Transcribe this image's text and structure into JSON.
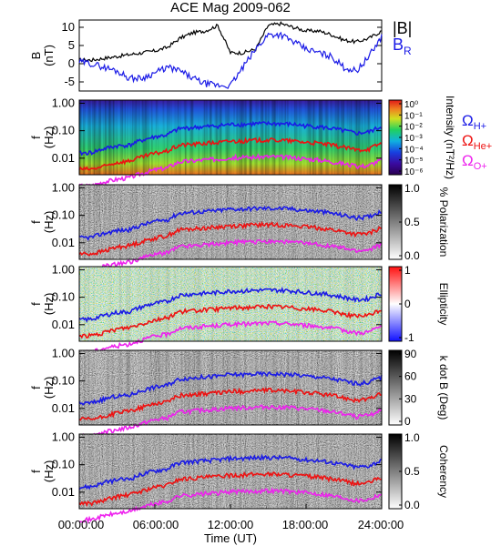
{
  "title": "ACE Mag 2009-062",
  "colors": {
    "b_total": "#000000",
    "b_r": "#1a1ae6",
    "omega_h": "#1a1ae6",
    "omega_he": "#ee1111",
    "omega_o": "#ee22ee"
  },
  "x_axis": {
    "label": "Time (UT)",
    "ticks": [
      "00:00:00",
      "06:00:00",
      "12:00:00",
      "18:00:00",
      "24:00:00"
    ],
    "range_hours": [
      0,
      24
    ]
  },
  "gyro_legend": [
    {
      "symbol": "Ω",
      "sub": "H+",
      "color": "#1a1ae6"
    },
    {
      "symbol": "Ω",
      "sub": "He+",
      "color": "#ee1111"
    },
    {
      "symbol": "Ω",
      "sub": "O+",
      "color": "#ee22ee"
    }
  ],
  "chart_data": [
    {
      "type": "line",
      "panel": "field",
      "ylabel_main": "B",
      "ylabel_unit": "(nT)",
      "ylim": [
        -7.5,
        12
      ],
      "yticks": [
        "10",
        "5",
        "0",
        "-5"
      ],
      "legend": [
        {
          "name": "|B|",
          "color": "#000000"
        },
        {
          "name": "B",
          "sub": "R",
          "color": "#1a1ae6"
        }
      ],
      "x_hours": [
        0,
        1,
        2,
        3,
        4,
        5,
        6,
        7,
        8,
        9,
        10,
        11,
        12,
        13,
        14,
        15,
        16,
        17,
        18,
        19,
        20,
        21,
        22,
        23,
        24
      ],
      "series": [
        {
          "name": "|B|",
          "values": [
            1,
            1,
            1.5,
            2,
            2.5,
            3,
            3.5,
            4.5,
            7,
            8.5,
            9,
            10.5,
            3,
            3,
            4,
            10.5,
            11,
            10,
            9,
            9,
            8,
            6.5,
            6,
            7,
            9
          ]
        },
        {
          "name": "B",
          "sub": "R",
          "values": [
            0.5,
            0,
            -1,
            -2,
            -4,
            -4,
            -2.5,
            -1,
            -2,
            -4,
            -5.5,
            -6,
            -6,
            -1,
            4,
            8,
            8,
            6,
            4,
            3,
            2,
            -1,
            -2,
            2,
            7.5
          ]
        }
      ]
    },
    {
      "type": "heatmap",
      "panel": "power",
      "ylabel_main": "f",
      "ylabel_unit": "(Hz)",
      "yticks": [
        "1.00",
        "0.10",
        "0.01"
      ],
      "colorbar_label": "Intensity (nT²/Hz)",
      "colorbar_ticks": [
        "10⁰",
        "10⁻¹",
        "10⁻²",
        "10⁻³",
        "10⁻⁴",
        "10⁻⁵",
        "10⁻⁶"
      ]
    },
    {
      "type": "heatmap",
      "panel": "polarization",
      "ylabel_main": "f",
      "ylabel_unit": "(Hz)",
      "yticks": [
        "1.00",
        "0.10",
        "0.01"
      ],
      "colorbar_label": "% Polarization",
      "colorbar_ticks": [
        "1.0",
        "0.5",
        "0.0"
      ]
    },
    {
      "type": "heatmap",
      "panel": "ellipticity",
      "ylabel_main": "f",
      "ylabel_unit": "(Hz)",
      "yticks": [
        "1.00",
        "0.10",
        "0.01"
      ],
      "colorbar_label": "Ellipticity",
      "colorbar_ticks": [
        "1",
        "0",
        "-1"
      ]
    },
    {
      "type": "heatmap",
      "panel": "kdotb",
      "ylabel_main": "f",
      "ylabel_unit": "(Hz)",
      "yticks": [
        "1.00",
        "0.10",
        "0.01"
      ],
      "colorbar_label": "k dot B (Deg)",
      "colorbar_ticks": [
        "90",
        "60",
        "30",
        "0"
      ]
    },
    {
      "type": "heatmap",
      "panel": "coherency",
      "ylabel_main": "f",
      "ylabel_unit": "(Hz)",
      "yticks": [
        "1.00",
        "0.10",
        "0.01"
      ],
      "colorbar_label": "Coherency",
      "colorbar_ticks": [
        "1.0",
        "0.5",
        "0.0"
      ]
    }
  ],
  "gyrofrequency_hz": {
    "x_hours": [
      0,
      1,
      2,
      3,
      4,
      5,
      6,
      7,
      8,
      9,
      10,
      11,
      12,
      13,
      14,
      15,
      16,
      17,
      18,
      19,
      20,
      21,
      22,
      23,
      24
    ],
    "H+": [
      0.015,
      0.016,
      0.022,
      0.028,
      0.03,
      0.045,
      0.06,
      0.07,
      0.12,
      0.13,
      0.14,
      0.15,
      0.17,
      0.17,
      0.18,
      0.18,
      0.18,
      0.17,
      0.15,
      0.14,
      0.12,
      0.1,
      0.08,
      0.09,
      0.14
    ],
    "He+": [
      0.004,
      0.004,
      0.005,
      0.007,
      0.008,
      0.011,
      0.015,
      0.018,
      0.03,
      0.032,
      0.035,
      0.037,
      0.042,
      0.042,
      0.045,
      0.046,
      0.045,
      0.042,
      0.038,
      0.035,
      0.03,
      0.025,
      0.02,
      0.022,
      0.035
    ],
    "O+": [
      0.001,
      0.001,
      0.0014,
      0.0017,
      0.002,
      0.0028,
      0.0038,
      0.0045,
      0.0075,
      0.008,
      0.0088,
      0.0093,
      0.0105,
      0.0105,
      0.011,
      0.0115,
      0.0112,
      0.0105,
      0.0095,
      0.0088,
      0.0075,
      0.0063,
      0.005,
      0.0055,
      0.0088
    ]
  }
}
